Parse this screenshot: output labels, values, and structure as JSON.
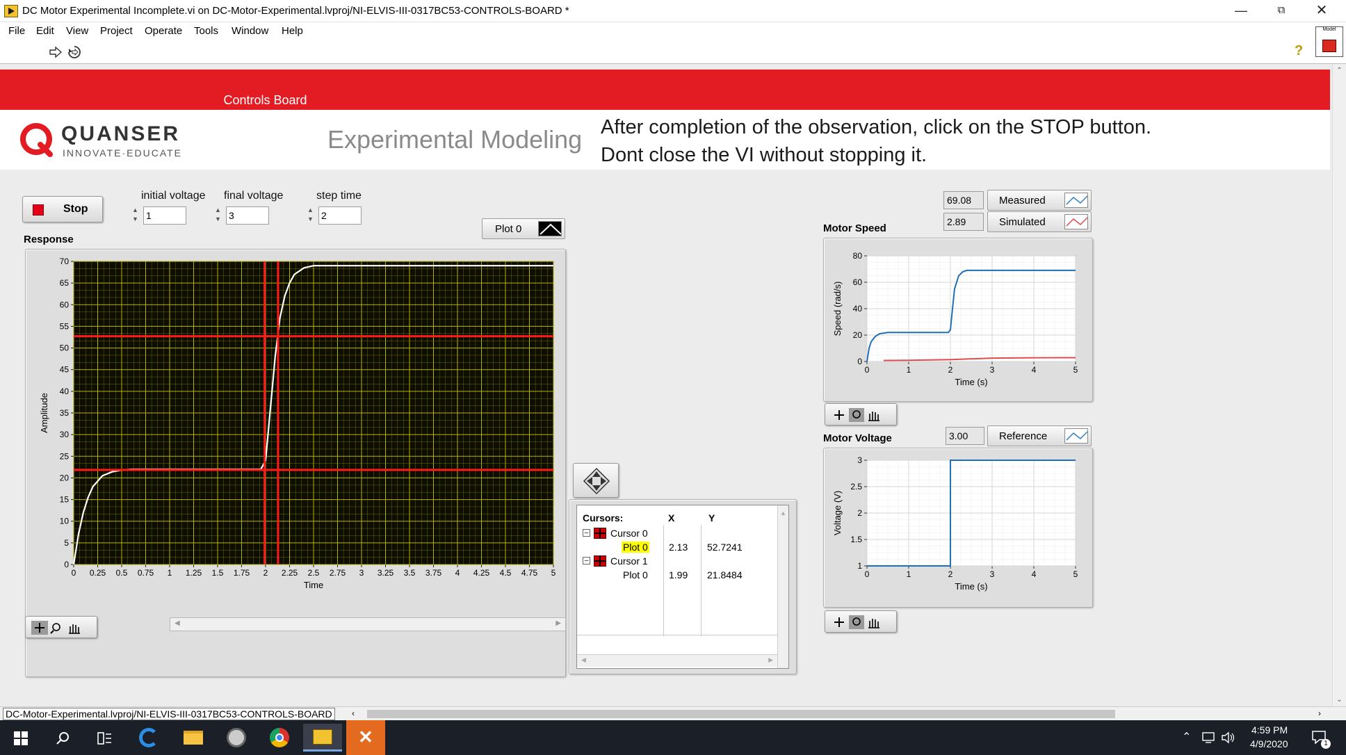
{
  "window": {
    "title": "DC Motor Experimental Incomplete.vi on DC-Motor-Experimental.lvproj/NI-ELVIS-III-0317BC53-CONTROLS-BOARD *"
  },
  "menu": [
    "File",
    "Edit",
    "View",
    "Project",
    "Operate",
    "Tools",
    "Window",
    "Help"
  ],
  "header": {
    "bar_label": "Controls Board",
    "logo_name": "QUANSER",
    "logo_tagline": "INNOVATE·EDUCATE",
    "subtitle": "Experimental Modeling",
    "instruction_line1": "After completion of the observation, click on the STOP button.",
    "instruction_line2": "Dont close the VI without stopping it."
  },
  "controls": {
    "stop_label": "Stop",
    "initial_voltage_label": "initial voltage",
    "initial_voltage_value": "1",
    "final_voltage_label": "final voltage",
    "final_voltage_value": "3",
    "step_time_label": "step time",
    "step_time_value": "2",
    "plot_legend": "Plot 0"
  },
  "response_graph": {
    "label": "Response",
    "xlabel": "Time",
    "ylabel": "Amplitude",
    "x_ticks": [
      "0",
      "0.25",
      "0.5",
      "0.75",
      "1",
      "1.25",
      "1.5",
      "1.75",
      "2",
      "2.25",
      "2.5",
      "2.75",
      "3",
      "3.25",
      "3.5",
      "3.75",
      "4",
      "4.25",
      "4.5",
      "4.75",
      "5"
    ],
    "y_ticks": [
      "70",
      "65",
      "60",
      "55",
      "50",
      "45",
      "40",
      "35",
      "30",
      "25",
      "20",
      "15",
      "10",
      "5",
      "0"
    ],
    "bg_color": "#0d0d00",
    "grid_color": "#b6b400",
    "cursor_color": "#ff1a1a"
  },
  "cursors": {
    "header": "Cursors:",
    "col_x": "X",
    "col_y": "Y",
    "rows": [
      {
        "name": "Cursor 0",
        "plot": "Plot 0",
        "x": "2.13",
        "y": "52.7241"
      },
      {
        "name": "Cursor 1",
        "plot": "Plot 0",
        "x": "1.99",
        "y": "21.8484"
      }
    ]
  },
  "motor_speed": {
    "label": "Motor Speed",
    "measured_value": "69.08",
    "simulated_value": "2.89",
    "legend_measured": "Measured",
    "legend_simulated": "Simulated",
    "xlabel": "Time (s)",
    "ylabel": "Speed (rad/s)",
    "x_ticks": [
      "0",
      "1",
      "2",
      "3",
      "4",
      "5"
    ],
    "y_ticks": [
      "80",
      "60",
      "40",
      "20",
      "0"
    ]
  },
  "motor_voltage": {
    "label": "Motor Voltage",
    "reference_value": "3.00",
    "legend_reference": "Reference",
    "xlabel": "Time (s)",
    "ylabel": "Voltage (V)",
    "x_ticks": [
      "0",
      "1",
      "2",
      "3",
      "4",
      "5"
    ],
    "y_ticks": [
      "3",
      "2.5",
      "2",
      "1.5",
      "1"
    ]
  },
  "statusbar": {
    "path": "DC-Motor-Experimental.lvproj/NI-ELVIS-III-0317BC53-CONTROLS-BOARD"
  },
  "taskbar": {
    "time": "4:59 PM",
    "date": "4/9/2020",
    "notification_count": "1"
  },
  "chart_data": [
    {
      "type": "line",
      "title": "Response",
      "xlabel": "Time",
      "ylabel": "Amplitude",
      "xlim": [
        0,
        5
      ],
      "ylim": [
        0,
        70
      ],
      "series": [
        {
          "name": "Plot 0",
          "x": [
            0,
            0.05,
            0.1,
            0.15,
            0.2,
            0.3,
            0.4,
            0.5,
            0.6,
            0.8,
            1.0,
            1.5,
            1.95,
            2.0,
            2.05,
            2.1,
            2.15,
            2.2,
            2.25,
            2.3,
            2.4,
            2.5,
            2.6,
            2.8,
            3.0,
            3.5,
            4.0,
            4.5,
            5.0
          ],
          "y": [
            0,
            7,
            12,
            15.5,
            18,
            20.5,
            21.4,
            21.8,
            22,
            22,
            22,
            22,
            22,
            24,
            36,
            48,
            57,
            62,
            65,
            67,
            68.5,
            69,
            69,
            69,
            69,
            69,
            69,
            69,
            69
          ]
        }
      ],
      "cursors": [
        {
          "name": "Cursor 0",
          "x": 2.13,
          "y": 52.7241
        },
        {
          "name": "Cursor 1",
          "x": 1.99,
          "y": 21.8484
        }
      ]
    },
    {
      "type": "line",
      "title": "Motor Speed",
      "xlabel": "Time (s)",
      "ylabel": "Speed (rad/s)",
      "xlim": [
        0,
        5
      ],
      "ylim": [
        0,
        80
      ],
      "series": [
        {
          "name": "Measured",
          "x": [
            0,
            0.05,
            0.1,
            0.2,
            0.3,
            0.5,
            0.8,
            1.0,
            1.5,
            1.95,
            2.0,
            2.05,
            2.1,
            2.2,
            2.3,
            2.4,
            2.5,
            3.0,
            4.0,
            5.0
          ],
          "y": [
            0,
            10,
            15,
            19,
            21,
            22,
            22,
            22,
            22,
            22,
            24,
            40,
            55,
            65,
            68,
            69,
            69,
            69,
            69,
            69
          ]
        },
        {
          "name": "Simulated",
          "x": [
            0.4,
            1.0,
            2.0,
            3.0,
            4.0,
            5.0
          ],
          "y": [
            0.8,
            0.9,
            1.4,
            2.6,
            2.85,
            2.89
          ]
        }
      ]
    },
    {
      "type": "line",
      "title": "Motor Voltage",
      "xlabel": "Time (s)",
      "ylabel": "Voltage (V)",
      "xlim": [
        0,
        5
      ],
      "ylim": [
        1,
        3
      ],
      "series": [
        {
          "name": "Reference",
          "x": [
            0,
            2,
            2,
            5
          ],
          "y": [
            1,
            1,
            3,
            3
          ]
        }
      ]
    }
  ]
}
